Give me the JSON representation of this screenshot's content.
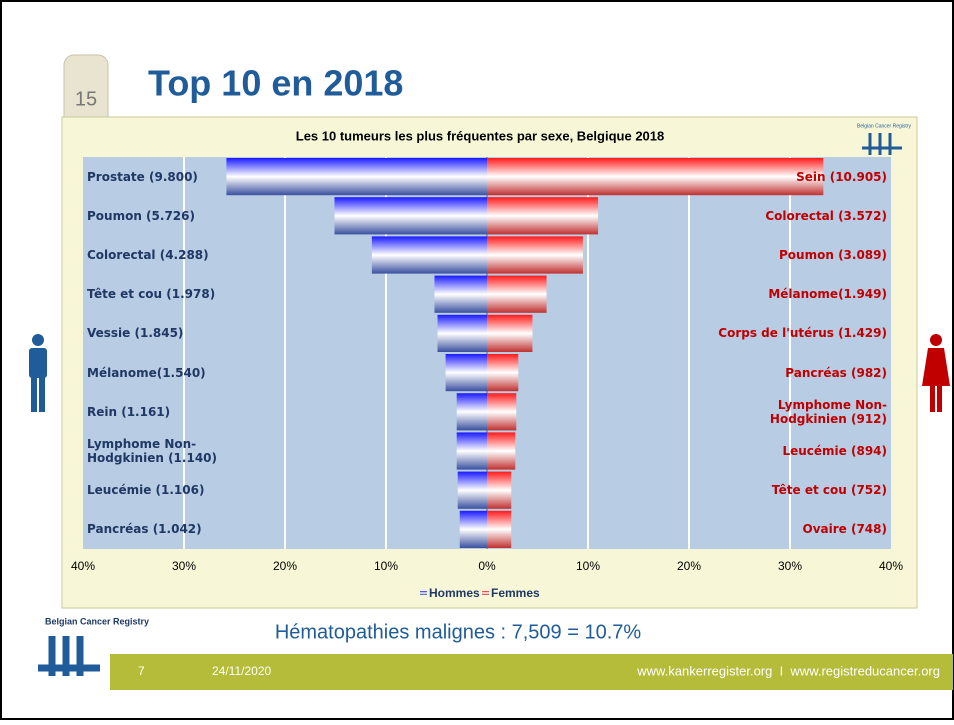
{
  "slide": {
    "title": "Top 10 en 2018",
    "milestone": "15",
    "logo": "Belgian Cancer Registry",
    "note": "Hématopathies malignes : 7,509 = 10.7%",
    "page": "7",
    "date": "24/11/2020",
    "footer": "www.kankerregister.org  I  www.registreducancer.org"
  },
  "chart_data": {
    "type": "pyramid",
    "title": "Les 10 tumeurs les plus fréquentes par sexe, Belgique 2018",
    "logo": "Belgian Cancer Registry",
    "xlim": [
      -40,
      40
    ],
    "xticks": [
      {
        "value": -40,
        "label": "40%"
      },
      {
        "value": -30,
        "label": "30%"
      },
      {
        "value": -20,
        "label": "20%"
      },
      {
        "value": -10,
        "label": "10%"
      },
      {
        "value": 0,
        "label": "0%"
      },
      {
        "value": 10,
        "label": "10%"
      },
      {
        "value": 20,
        "label": "20%"
      },
      {
        "value": 30,
        "label": "30%"
      },
      {
        "value": 40,
        "label": "40%"
      }
    ],
    "grid": true,
    "series": [
      {
        "name": "Hommes",
        "color": "#1a1aff",
        "labels": [
          "Prostate (9.800)",
          "Poumon (5.726)",
          "Colorectal (4.288)",
          "Tête et cou (1.978)",
          "Vessie (1.845)",
          "Mélanome(1.540)",
          "Rein (1.161)",
          "Lymphome Non-Hodgkinien (1.140)",
          "Leucémie  (1.106)",
          "Pancréas (1.042)"
        ],
        "values": [
          -25.8,
          -15.1,
          -11.4,
          -5.2,
          -4.9,
          -4.1,
          -3.0,
          -3.0,
          -2.9,
          -2.7
        ]
      },
      {
        "name": "Femmes",
        "color": "#ff1a1a",
        "labels": [
          "Sein (10.905)",
          "Colorectal (3.572)",
          "Poumon (3.089)",
          "Mélanome(1.949)",
          "Corps de l'utérus  (1.429)",
          "Pancréas (982)",
          "Lymphome Non-Hodgkinien (912)",
          "Leucémie  (894)",
          "Tête et cou (752)",
          "Ovaire  (748)"
        ],
        "values": [
          33.3,
          11.0,
          9.5,
          5.9,
          4.5,
          3.1,
          2.9,
          2.8,
          2.4,
          2.4
        ]
      }
    ]
  }
}
